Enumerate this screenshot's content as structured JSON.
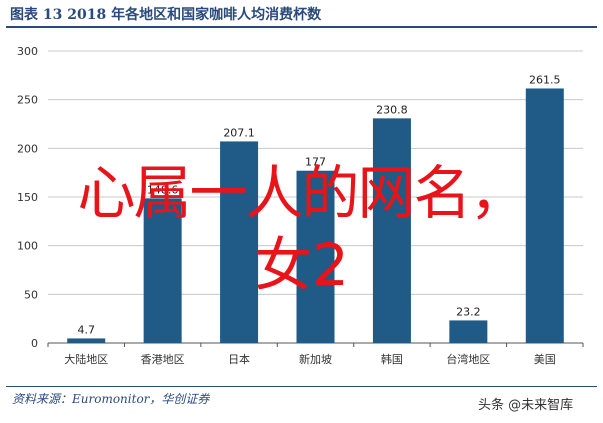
{
  "header": {
    "title": "图表 13   2018 年各地区和国家咖啡人均消费杯数"
  },
  "chart_data": {
    "type": "bar",
    "title": "",
    "xlabel": "",
    "ylabel": "",
    "categories": [
      "大陆地区",
      "香港地区",
      "日本",
      "新加坡",
      "韩国",
      "台湾地区",
      "美国"
    ],
    "values": [
      4.7,
      148.6,
      207.1,
      177.0,
      230.8,
      23.2,
      261.5
    ],
    "data_labels": [
      "4.7",
      "148.6",
      "207.1",
      "177",
      "230.8",
      "23.2",
      "261.5"
    ],
    "ylim": [
      0,
      300
    ],
    "yticks": [
      0,
      50,
      100,
      150,
      200,
      250,
      300
    ],
    "grid": true,
    "bar_color": "#1f5b86",
    "gridline_color": "#c8c8c8"
  },
  "source": {
    "text": "资料来源：Euromonitor，华创证券"
  },
  "watermark": {
    "line1": "心属一人的网名，",
    "line2": "女2",
    "corner": "头条 @未来智库",
    "color": "#e8141a"
  }
}
